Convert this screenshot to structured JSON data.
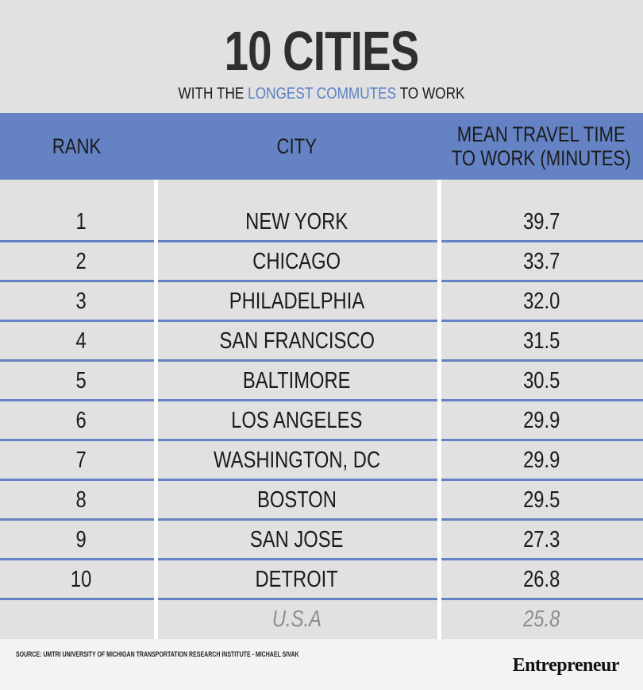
{
  "title": "10 CITIES",
  "subtitle": {
    "before": "WITH THE ",
    "accent": "LONGEST COMMUTES",
    "after": " TO WORK"
  },
  "colors": {
    "accent": "#6583c4",
    "background": "#e1e1e1",
    "muted_text": "#8d8d8d"
  },
  "chart_data": {
    "type": "table",
    "columns": [
      "RANK",
      "CITY",
      "MEAN TRAVEL TIME TO WORK (MINUTES)"
    ],
    "column_lines": [
      [
        "RANK"
      ],
      [
        "CITY"
      ],
      [
        "MEAN TRAVEL TIME",
        "TO WORK (MINUTES)"
      ]
    ],
    "rows": [
      {
        "rank": "1",
        "city": "NEW YORK",
        "time": "39.7"
      },
      {
        "rank": "2",
        "city": "CHICAGO",
        "time": "33.7"
      },
      {
        "rank": "3",
        "city": "PHILADELPHIA",
        "time": "32.0"
      },
      {
        "rank": "4",
        "city": "SAN FRANCISCO",
        "time": "31.5"
      },
      {
        "rank": "5",
        "city": "BALTIMORE",
        "time": "30.5"
      },
      {
        "rank": "6",
        "city": "LOS ANGELES",
        "time": "29.9"
      },
      {
        "rank": "7",
        "city": "WASHINGTON, DC",
        "time": "29.9"
      },
      {
        "rank": "8",
        "city": "BOSTON",
        "time": "29.5"
      },
      {
        "rank": "9",
        "city": "SAN JOSE",
        "time": "27.3"
      },
      {
        "rank": "10",
        "city": "DETROIT",
        "time": "26.8"
      }
    ],
    "total_row": {
      "rank": "",
      "city": "U.S.A",
      "time": "25.8"
    }
  },
  "footer": {
    "source": "SOURCE: UMTRI UNIVERSITY OF MICHIGAN TRANSPORTATION RESEARCH INSTITUTE - MICHAEL SIVAK",
    "brand": "Entrepreneur"
  }
}
